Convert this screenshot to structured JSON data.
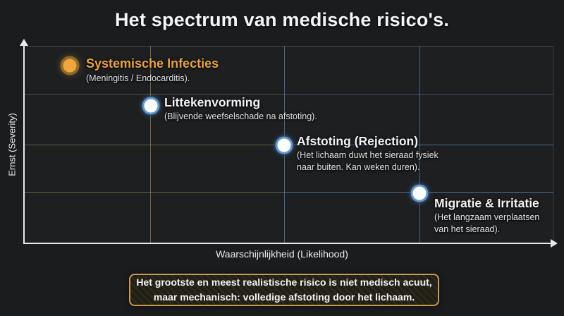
{
  "title": "Het spectrum van medische risico's.",
  "chart_data": {
    "type": "scatter",
    "title": "Het spectrum van medische risico's.",
    "xlabel": "Waarschijnlijkheid (Likelihood)",
    "ylabel": "Ernst (Severity)",
    "x_range": [
      0,
      1
    ],
    "y_range": [
      0,
      1
    ],
    "grid": "on",
    "points": [
      {
        "label": "Systemische Infecties",
        "sublabel": "(Meningitis / Endocarditis).",
        "x": 0.09,
        "y": 0.9,
        "marker_color": "#f0a63e",
        "ring_color": "#8f6b28",
        "label_color": "#e8a33d"
      },
      {
        "label": "Littekenvorming",
        "sublabel": "(Blijvende weefselschade na afstoting).",
        "x": 0.24,
        "y": 0.7,
        "marker_color": "#ffffff",
        "ring_color": "#6597c8",
        "label_color": "#f2f2f2"
      },
      {
        "label": "Afstoting (Rejection)",
        "sublabel": "(Het lichaam duwt het sieraad fysiek\nnaar buiten. Kan weken duren).",
        "x": 0.49,
        "y": 0.5,
        "marker_color": "#ffffff",
        "ring_color": "#6597c8",
        "label_color": "#f2f2f2"
      },
      {
        "label": "Migratie & Irritatie",
        "sublabel": "(Het langzaam verplaatsen\nvan het sieraad).",
        "x": 0.75,
        "y": 0.25,
        "marker_color": "#ffffff",
        "ring_color": "#6597c8",
        "label_color": "#f2f2f2"
      }
    ]
  },
  "note": {
    "text": "Het grootste en meest realistische risico is niet medisch acuut,\nmaar mechanisch: volledige afstoting door het lichaam."
  },
  "colors": {
    "background": "#1a1c1e",
    "accent_gold": "#e8a33d",
    "grid_olive": "#b2985c",
    "grid_blue": "#5c8ac0",
    "axis": "#e9e9e9",
    "note_border": "#c89a4e"
  }
}
